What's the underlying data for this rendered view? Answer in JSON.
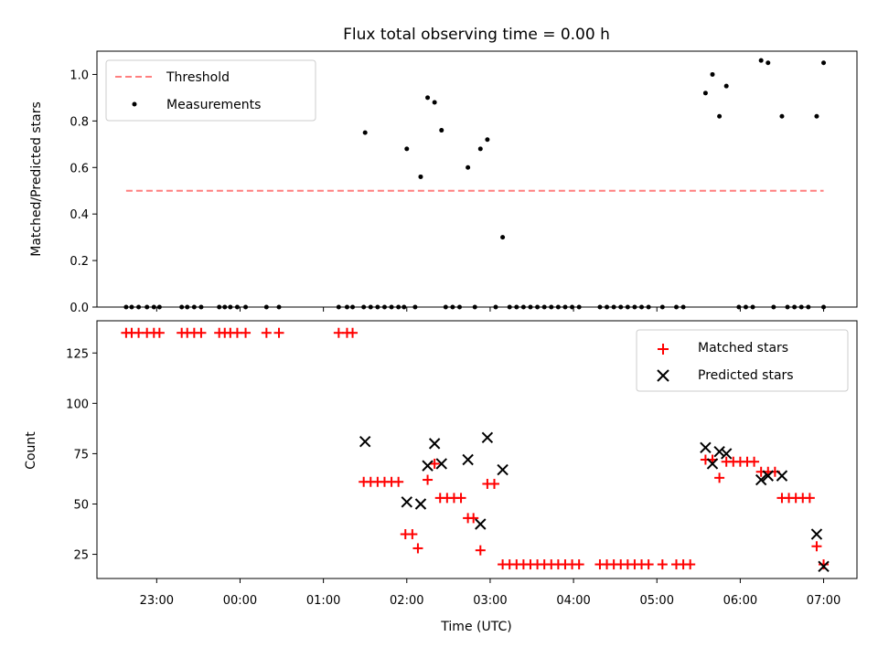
{
  "figure": {
    "title": "Flux total observing time = 0.00 h",
    "xlabel": "Time (UTC)",
    "x_tick_labels": [
      "23:00",
      "00:00",
      "01:00",
      "02:00",
      "03:00",
      "04:00",
      "05:00",
      "06:00",
      "07:00"
    ]
  },
  "chart_data": [
    {
      "type": "scatter",
      "title": "Flux total observing time = 0.00 h",
      "xlabel": "",
      "ylabel": "Matched/Predicted stars",
      "xlim": [
        "22:17",
        "07:24"
      ],
      "ylim": [
        0.0,
        1.1
      ],
      "y_ticks": [
        0.0,
        0.2,
        0.4,
        0.6,
        0.8,
        1.0
      ],
      "y_tick_labels": [
        "0.0",
        "0.2",
        "0.4",
        "0.6",
        "0.8",
        "1.0"
      ],
      "legend_position": "top-left",
      "grid": false,
      "series": [
        {
          "name": "Threshold",
          "style": "dashed-line",
          "color": "#ff7f7f",
          "points": [
            [
              "22:38",
              0.5
            ],
            [
              "07:00",
              0.5
            ]
          ]
        },
        {
          "name": "Measurements",
          "style": "dot",
          "color": "#000000",
          "points": [
            [
              "22:38",
              0.0
            ],
            [
              "22:42",
              0.0
            ],
            [
              "22:47",
              0.0
            ],
            [
              "22:53",
              0.0
            ],
            [
              "22:58",
              0.0
            ],
            [
              "23:02",
              0.0
            ],
            [
              "23:18",
              0.0
            ],
            [
              "23:22",
              0.0
            ],
            [
              "23:27",
              0.0
            ],
            [
              "23:32",
              0.0
            ],
            [
              "23:45",
              0.0
            ],
            [
              "23:49",
              0.0
            ],
            [
              "23:53",
              0.0
            ],
            [
              "23:58",
              0.0
            ],
            [
              "00:04",
              0.0
            ],
            [
              "00:19",
              0.0
            ],
            [
              "00:28",
              0.0
            ],
            [
              "01:11",
              0.0
            ],
            [
              "01:17",
              0.0
            ],
            [
              "01:21",
              0.0
            ],
            [
              "01:29",
              0.0
            ],
            [
              "01:34",
              0.0
            ],
            [
              "01:39",
              0.0
            ],
            [
              "01:44",
              0.0
            ],
            [
              "01:49",
              0.0
            ],
            [
              "01:54",
              0.0
            ],
            [
              "01:58",
              0.0
            ],
            [
              "02:06",
              0.0
            ],
            [
              "02:28",
              0.0
            ],
            [
              "02:33",
              0.0
            ],
            [
              "02:38",
              0.0
            ],
            [
              "02:49",
              0.0
            ],
            [
              "03:04",
              0.0
            ],
            [
              "03:14",
              0.0
            ],
            [
              "03:19",
              0.0
            ],
            [
              "03:24",
              0.0
            ],
            [
              "03:29",
              0.0
            ],
            [
              "03:34",
              0.0
            ],
            [
              "03:39",
              0.0
            ],
            [
              "03:44",
              0.0
            ],
            [
              "03:49",
              0.0
            ],
            [
              "03:54",
              0.0
            ],
            [
              "03:59",
              0.0
            ],
            [
              "04:04",
              0.0
            ],
            [
              "04:19",
              0.0
            ],
            [
              "04:24",
              0.0
            ],
            [
              "04:29",
              0.0
            ],
            [
              "04:34",
              0.0
            ],
            [
              "04:39",
              0.0
            ],
            [
              "04:44",
              0.0
            ],
            [
              "04:49",
              0.0
            ],
            [
              "04:54",
              0.0
            ],
            [
              "05:04",
              0.0
            ],
            [
              "05:14",
              0.0
            ],
            [
              "05:19",
              0.0
            ],
            [
              "05:59",
              0.0
            ],
            [
              "06:04",
              0.0
            ],
            [
              "06:09",
              0.0
            ],
            [
              "06:24",
              0.0
            ],
            [
              "06:34",
              0.0
            ],
            [
              "06:39",
              0.0
            ],
            [
              "06:44",
              0.0
            ],
            [
              "06:49",
              0.0
            ],
            [
              "07:00",
              0.0
            ],
            [
              "01:30",
              0.75
            ],
            [
              "02:00",
              0.68
            ],
            [
              "02:10",
              0.56
            ],
            [
              "02:15",
              0.9
            ],
            [
              "02:20",
              0.88
            ],
            [
              "02:25",
              0.76
            ],
            [
              "02:44",
              0.6
            ],
            [
              "02:53",
              0.68
            ],
            [
              "02:58",
              0.72
            ],
            [
              "03:09",
              0.3
            ],
            [
              "05:35",
              0.92
            ],
            [
              "05:40",
              1.0
            ],
            [
              "05:45",
              0.82
            ],
            [
              "05:50",
              0.95
            ],
            [
              "06:15",
              1.06
            ],
            [
              "06:20",
              1.05
            ],
            [
              "06:30",
              0.82
            ],
            [
              "06:55",
              0.82
            ],
            [
              "07:00",
              1.05
            ]
          ]
        }
      ]
    },
    {
      "type": "scatter",
      "xlabel": "Time (UTC)",
      "ylabel": "Count",
      "xlim": [
        "22:17",
        "07:24"
      ],
      "ylim": [
        13,
        141
      ],
      "y_ticks": [
        25,
        50,
        75,
        100,
        125
      ],
      "y_tick_labels": [
        "25",
        "50",
        "75",
        "100",
        "125"
      ],
      "legend_position": "top-right",
      "grid": false,
      "series": [
        {
          "name": "Matched stars",
          "marker": "plus",
          "color": "#ff0000",
          "points": [
            [
              "22:38",
              135
            ],
            [
              "22:42",
              135
            ],
            [
              "22:47",
              135
            ],
            [
              "22:53",
              135
            ],
            [
              "22:58",
              135
            ],
            [
              "23:02",
              135
            ],
            [
              "23:18",
              135
            ],
            [
              "23:22",
              135
            ],
            [
              "23:27",
              135
            ],
            [
              "23:32",
              135
            ],
            [
              "23:45",
              135
            ],
            [
              "23:49",
              135
            ],
            [
              "23:53",
              135
            ],
            [
              "23:58",
              135
            ],
            [
              "00:04",
              135
            ],
            [
              "00:19",
              135
            ],
            [
              "00:28",
              135
            ],
            [
              "01:11",
              135
            ],
            [
              "01:17",
              135
            ],
            [
              "01:21",
              135
            ],
            [
              "01:29",
              61
            ],
            [
              "01:34",
              61
            ],
            [
              "01:39",
              61
            ],
            [
              "01:44",
              61
            ],
            [
              "01:49",
              61
            ],
            [
              "01:54",
              61
            ],
            [
              "01:59",
              35
            ],
            [
              "02:04",
              35
            ],
            [
              "02:08",
              28
            ],
            [
              "02:15",
              62
            ],
            [
              "02:20",
              70
            ],
            [
              "02:24",
              53
            ],
            [
              "02:29",
              53
            ],
            [
              "02:34",
              53
            ],
            [
              "02:39",
              53
            ],
            [
              "02:44",
              43
            ],
            [
              "02:48",
              43
            ],
            [
              "02:53",
              27
            ],
            [
              "02:58",
              60
            ],
            [
              "03:03",
              60
            ],
            [
              "03:09",
              20
            ],
            [
              "03:14",
              20
            ],
            [
              "03:19",
              20
            ],
            [
              "03:24",
              20
            ],
            [
              "03:29",
              20
            ],
            [
              "03:34",
              20
            ],
            [
              "03:39",
              20
            ],
            [
              "03:44",
              20
            ],
            [
              "03:49",
              20
            ],
            [
              "03:54",
              20
            ],
            [
              "03:59",
              20
            ],
            [
              "04:04",
              20
            ],
            [
              "04:19",
              20
            ],
            [
              "04:24",
              20
            ],
            [
              "04:29",
              20
            ],
            [
              "04:34",
              20
            ],
            [
              "04:39",
              20
            ],
            [
              "04:44",
              20
            ],
            [
              "04:49",
              20
            ],
            [
              "04:54",
              20
            ],
            [
              "05:04",
              20
            ],
            [
              "05:14",
              20
            ],
            [
              "05:19",
              20
            ],
            [
              "05:24",
              20
            ],
            [
              "05:35",
              72
            ],
            [
              "05:40",
              72
            ],
            [
              "05:45",
              63
            ],
            [
              "05:50",
              71
            ],
            [
              "05:55",
              71
            ],
            [
              "06:00",
              71
            ],
            [
              "06:05",
              71
            ],
            [
              "06:10",
              71
            ],
            [
              "06:15",
              66
            ],
            [
              "06:20",
              66
            ],
            [
              "06:25",
              66
            ],
            [
              "06:30",
              53
            ],
            [
              "06:35",
              53
            ],
            [
              "06:40",
              53
            ],
            [
              "06:45",
              53
            ],
            [
              "06:50",
              53
            ],
            [
              "06:55",
              29
            ],
            [
              "07:00",
              20
            ]
          ]
        },
        {
          "name": "Predicted stars",
          "marker": "x",
          "color": "#000000",
          "points": [
            [
              "01:30",
              81
            ],
            [
              "02:00",
              51
            ],
            [
              "02:10",
              50
            ],
            [
              "02:15",
              69
            ],
            [
              "02:20",
              80
            ],
            [
              "02:25",
              70
            ],
            [
              "02:44",
              72
            ],
            [
              "02:53",
              40
            ],
            [
              "02:58",
              83
            ],
            [
              "03:09",
              67
            ],
            [
              "05:35",
              78
            ],
            [
              "05:40",
              70
            ],
            [
              "05:45",
              76
            ],
            [
              "05:50",
              75
            ],
            [
              "06:15",
              62
            ],
            [
              "06:20",
              64
            ],
            [
              "06:30",
              64
            ],
            [
              "06:55",
              35
            ],
            [
              "07:00",
              19
            ]
          ]
        }
      ]
    }
  ]
}
